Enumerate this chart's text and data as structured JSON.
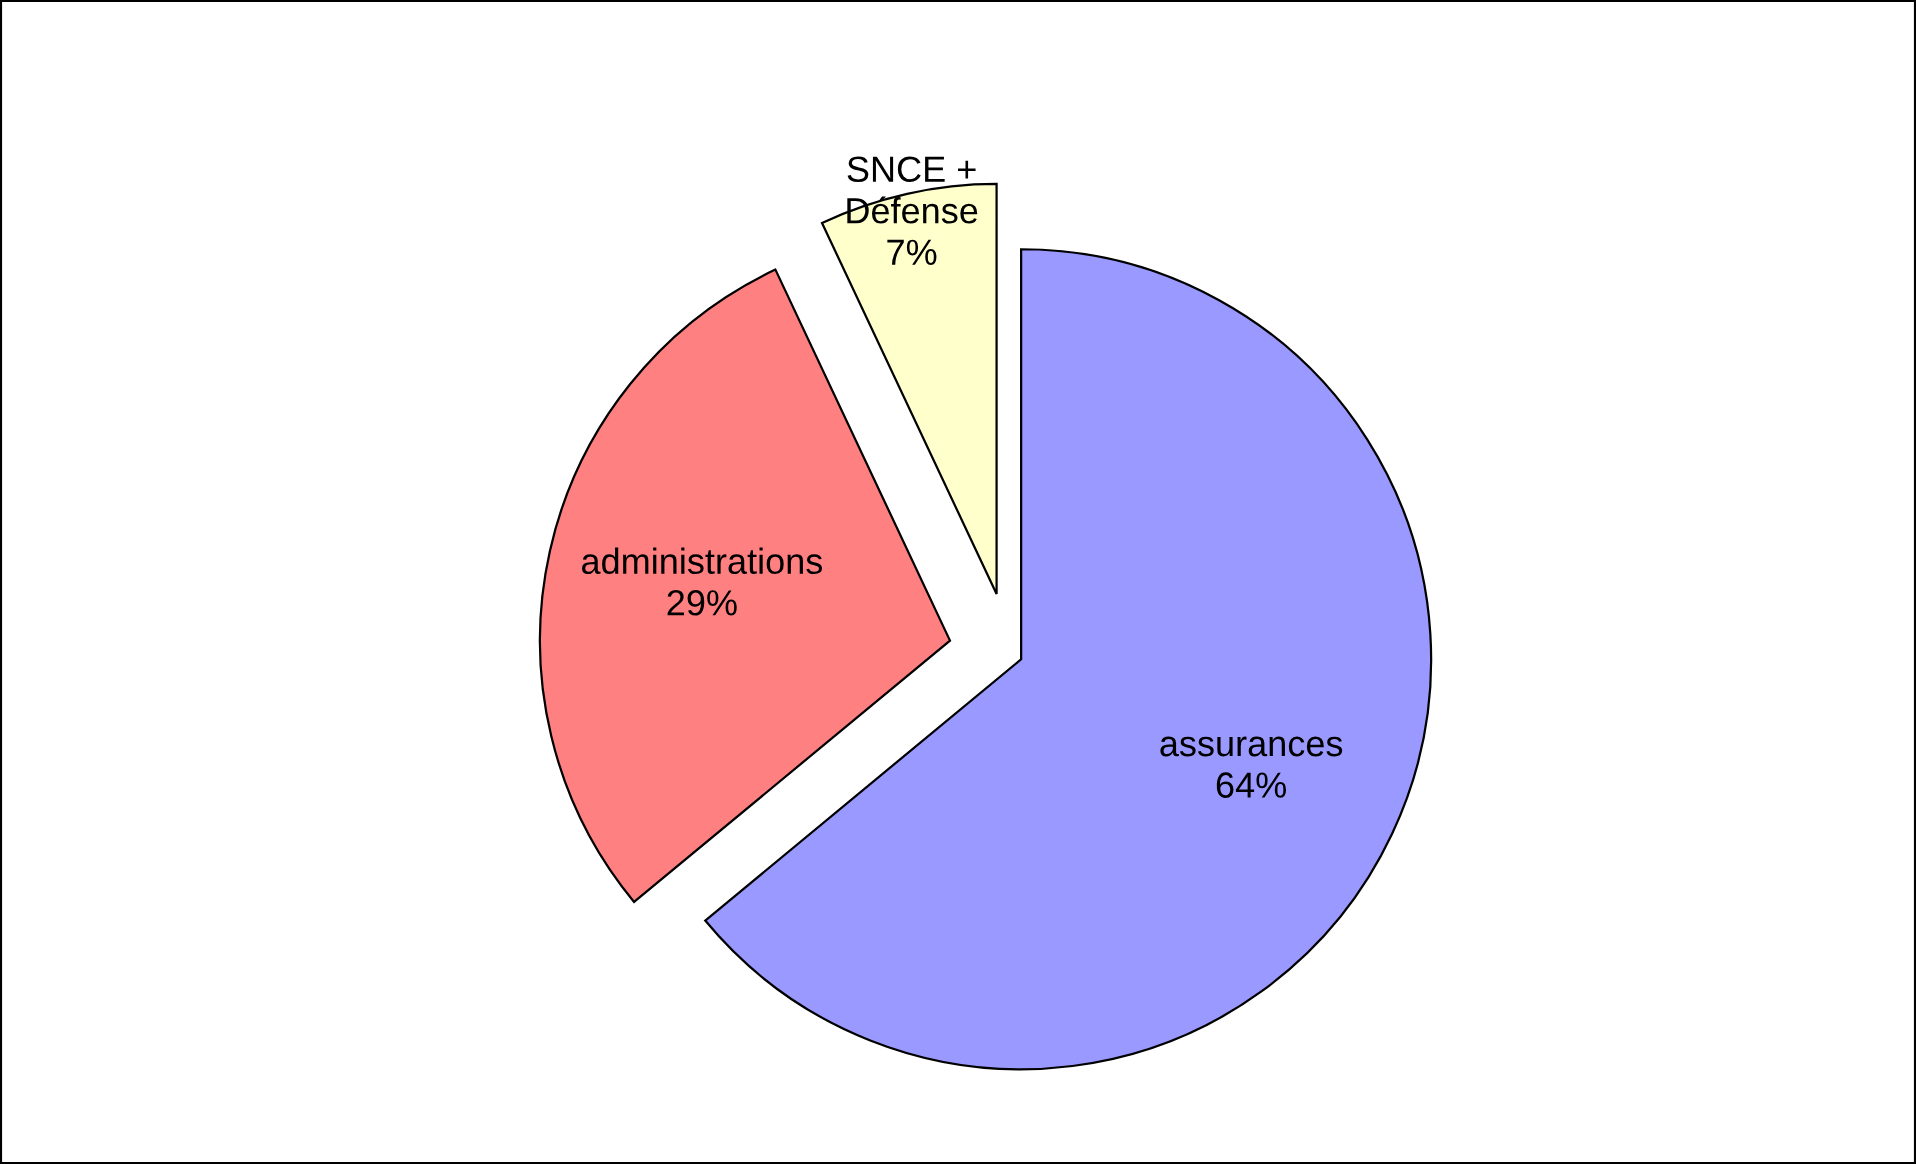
{
  "chart_data": {
    "type": "pie",
    "categories": [
      "assurances",
      "administrations",
      "SNCE +\nDéfense"
    ],
    "values": [
      64,
      29,
      7
    ],
    "value_labels": [
      "64%",
      "29%",
      "7%"
    ],
    "colors": [
      "#9999ff",
      "#ff8080",
      "#ffffcc"
    ]
  }
}
